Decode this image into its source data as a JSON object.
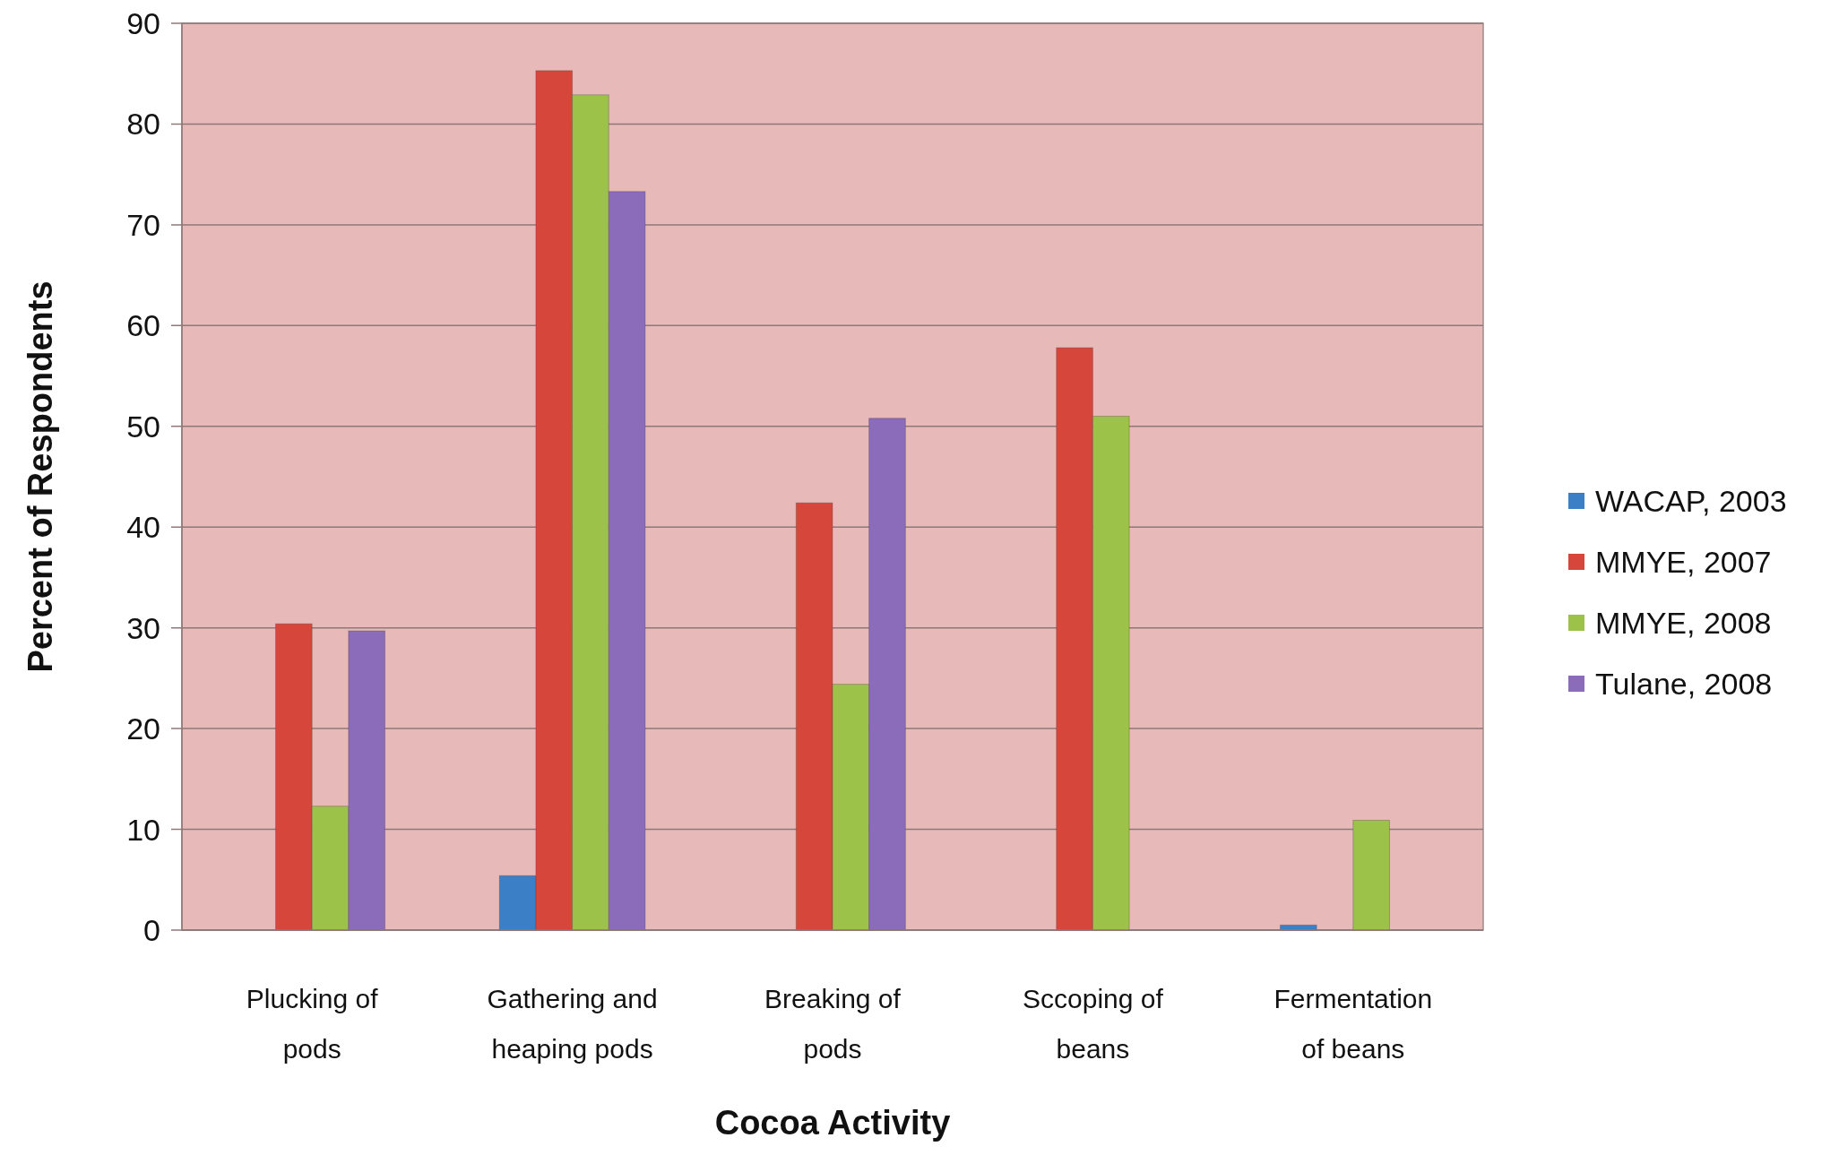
{
  "chart_data": {
    "type": "bar",
    "xlabel": "Cocoa Activity",
    "ylabel": "Percent of Respondents",
    "categories": [
      "Plucking of pods",
      "Gathering and heaping pods",
      "Breaking of pods",
      "Sccoping of beans",
      "Fermentation of beans"
    ],
    "series": [
      {
        "name": "WACAP, 2003",
        "color": "#3b80c6",
        "values": [
          null,
          5.4,
          null,
          null,
          0.5
        ]
      },
      {
        "name": "MMYE, 2007",
        "color": "#d6463b",
        "values": [
          30.4,
          85.3,
          42.4,
          57.8,
          null
        ]
      },
      {
        "name": "MMYE, 2008",
        "color": "#9cc24a",
        "values": [
          12.3,
          82.9,
          24.4,
          51.0,
          10.9
        ]
      },
      {
        "name": "Tulane, 2008",
        "color": "#8a6cbb",
        "values": [
          29.7,
          73.3,
          50.8,
          null,
          null
        ]
      }
    ],
    "ylim": [
      0,
      90
    ],
    "yticks": [
      0,
      10,
      20,
      30,
      40,
      50,
      60,
      70,
      80,
      90
    ],
    "grid": "y",
    "legend": "right"
  }
}
